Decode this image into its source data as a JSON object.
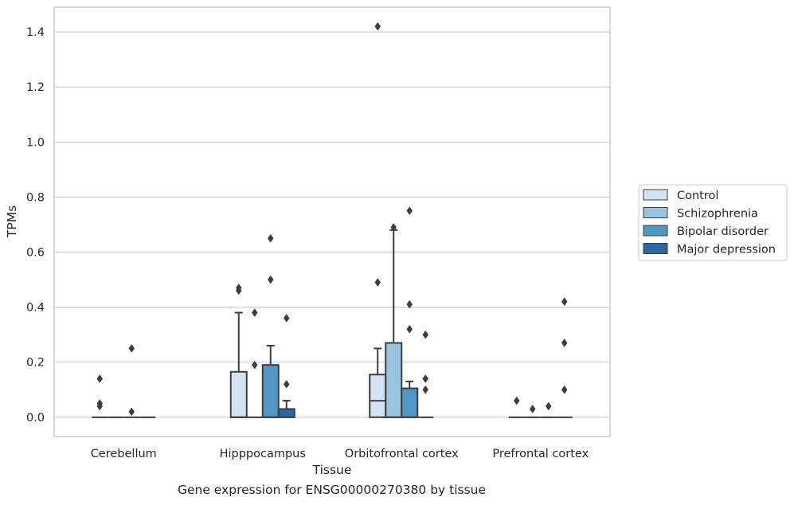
{
  "caption": "Gene expression for ENSG00000270380 by tissue",
  "chart_data": {
    "type": "boxplot",
    "title": "",
    "xlabel": "Tissue",
    "ylabel": "TPMs",
    "ylim": [
      -0.07,
      1.49
    ],
    "yticks": [
      0.0,
      0.2,
      0.4,
      0.6,
      0.8,
      1.0,
      1.2,
      1.4
    ],
    "ytick_labels": [
      "0.0",
      "0.2",
      "0.4",
      "0.6",
      "0.8",
      "1.0",
      "1.2",
      "1.4"
    ],
    "grid": "horizontal",
    "legend_placement": "right",
    "categories": [
      "Cerebellum",
      "Hipppocampus",
      "Orbitofrontal cortex",
      "Prefrontal cortex"
    ],
    "series": [
      {
        "name": "Control",
        "color": "#d3e3f2",
        "boxes": [
          {
            "q1": 0,
            "median": 0,
            "q3": 0,
            "whislo": 0,
            "whishi": 0,
            "fliers": [
              0.14,
              0.05,
              0.04
            ]
          },
          {
            "q1": 0,
            "median": 0,
            "q3": 0.165,
            "whislo": 0,
            "whishi": 0.38,
            "fliers": [
              0.47,
              0.46
            ]
          },
          {
            "q1": 0,
            "median": 0.06,
            "q3": 0.155,
            "whislo": 0,
            "whishi": 0.25,
            "fliers": [
              0.49,
              1.42
            ]
          },
          {
            "q1": 0,
            "median": 0,
            "q3": 0,
            "whislo": 0,
            "whishi": 0,
            "fliers": [
              0.06
            ]
          }
        ]
      },
      {
        "name": "Schizophrenia",
        "color": "#9ac3dd",
        "boxes": [
          {
            "q1": 0,
            "median": 0,
            "q3": 0,
            "whislo": 0,
            "whishi": 0,
            "fliers": []
          },
          {
            "q1": 0,
            "median": 0,
            "q3": 0,
            "whislo": 0,
            "whishi": 0,
            "fliers": [
              0.38,
              0.19
            ]
          },
          {
            "q1": 0,
            "median": 0,
            "q3": 0.27,
            "whislo": 0,
            "whishi": 0.68,
            "fliers": [
              0.69
            ]
          },
          {
            "q1": 0,
            "median": 0,
            "q3": 0,
            "whislo": 0,
            "whishi": 0,
            "fliers": [
              0.03
            ]
          }
        ]
      },
      {
        "name": "Bipolar disorder",
        "color": "#5196c4",
        "boxes": [
          {
            "q1": 0,
            "median": 0,
            "q3": 0,
            "whislo": 0,
            "whishi": 0,
            "fliers": [
              0.25,
              0.02
            ]
          },
          {
            "q1": 0,
            "median": 0,
            "q3": 0.19,
            "whislo": 0,
            "whishi": 0.26,
            "fliers": [
              0.65,
              0.5
            ]
          },
          {
            "q1": 0,
            "median": 0,
            "q3": 0.105,
            "whislo": 0,
            "whishi": 0.13,
            "fliers": [
              0.75,
              0.41,
              0.32
            ]
          },
          {
            "q1": 0,
            "median": 0,
            "q3": 0,
            "whislo": 0,
            "whishi": 0,
            "fliers": [
              0.04
            ]
          }
        ]
      },
      {
        "name": "Major depression",
        "color": "#2868a6",
        "boxes": [
          {
            "q1": 0,
            "median": 0,
            "q3": 0,
            "whislo": 0,
            "whishi": 0,
            "fliers": []
          },
          {
            "q1": 0,
            "median": 0,
            "q3": 0.03,
            "whislo": 0,
            "whishi": 0.06,
            "fliers": [
              0.36,
              0.12
            ]
          },
          {
            "q1": 0,
            "median": 0,
            "q3": 0,
            "whislo": 0,
            "whishi": 0,
            "fliers": [
              0.3,
              0.14,
              0.1
            ]
          },
          {
            "q1": 0,
            "median": 0,
            "q3": 0,
            "whislo": 0,
            "whishi": 0,
            "fliers": [
              0.42,
              0.27,
              0.1
            ]
          }
        ]
      }
    ]
  }
}
